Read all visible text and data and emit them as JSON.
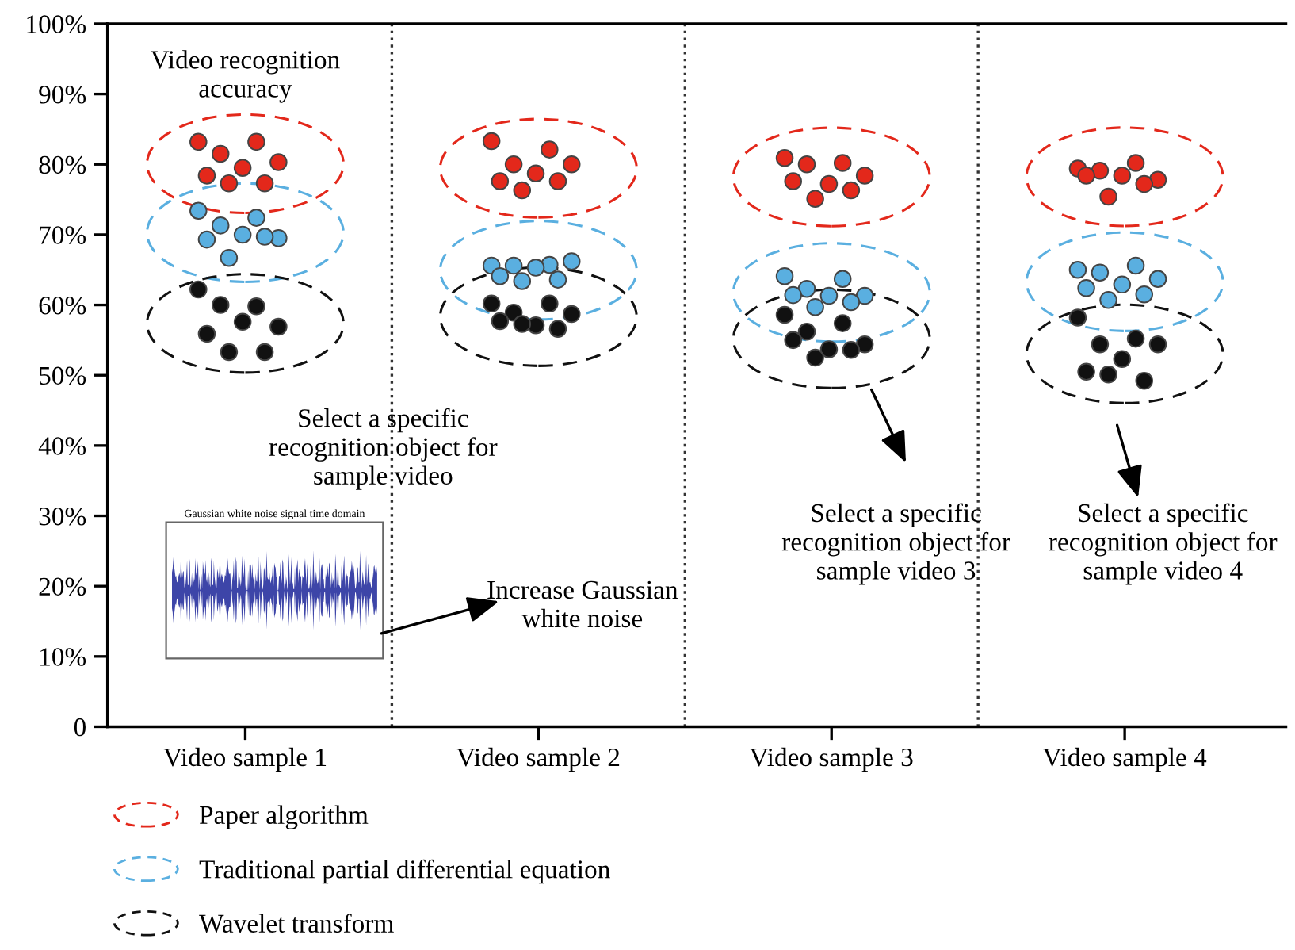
{
  "chart_data": {
    "type": "scatter",
    "categories": [
      "Video sample 1",
      "Video sample 2",
      "Video sample 3",
      "Video sample 4"
    ],
    "ylim": [
      0,
      100
    ],
    "yticks": [
      {
        "value": 0,
        "label": "0"
      },
      {
        "value": 10,
        "label": "10%"
      },
      {
        "value": 20,
        "label": "20%"
      },
      {
        "value": 30,
        "label": "30%"
      },
      {
        "value": 40,
        "label": "40%"
      },
      {
        "value": 50,
        "label": "50%"
      },
      {
        "value": 60,
        "label": "60%"
      },
      {
        "value": 70,
        "label": "70%"
      },
      {
        "value": 80,
        "label": "80%"
      },
      {
        "value": 90,
        "label": "90%"
      },
      {
        "value": 100,
        "label": "100%"
      }
    ],
    "marker": "circle",
    "grid": false,
    "legend": "bottom",
    "series": [
      {
        "name": "Paper algorithm",
        "color": "#e3281b",
        "x": [
          "Video sample 1",
          "Video sample 1",
          "Video sample 1",
          "Video sample 1",
          "Video sample 1",
          "Video sample 1",
          "Video sample 1",
          "Video sample 1",
          "Video sample 2",
          "Video sample 2",
          "Video sample 2",
          "Video sample 2",
          "Video sample 2",
          "Video sample 2",
          "Video sample 2",
          "Video sample 2",
          "Video sample 3",
          "Video sample 3",
          "Video sample 3",
          "Video sample 3",
          "Video sample 3",
          "Video sample 3",
          "Video sample 3",
          "Video sample 3",
          "Video sample 4",
          "Video sample 4",
          "Video sample 4",
          "Video sample 4",
          "Video sample 4",
          "Video sample 4",
          "Video sample 4",
          "Video sample 4"
        ],
        "values": [
          83.2,
          83.2,
          81.5,
          80.3,
          79.5,
          78.4,
          77.3,
          77.3,
          83.3,
          82.1,
          80.0,
          80.0,
          78.7,
          77.6,
          77.6,
          76.3,
          80.9,
          80.2,
          80.0,
          78.4,
          77.2,
          77.6,
          76.3,
          75.1,
          79.4,
          80.2,
          79.1,
          77.8,
          78.4,
          78.4,
          77.2,
          75.4
        ]
      },
      {
        "name": "Traditional partial differential equation",
        "color": "#5aafe0",
        "x": [
          "Video sample 1",
          "Video sample 1",
          "Video sample 1",
          "Video sample 1",
          "Video sample 1",
          "Video sample 1",
          "Video sample 1",
          "Video sample 1",
          "Video sample 2",
          "Video sample 2",
          "Video sample 2",
          "Video sample 2",
          "Video sample 2",
          "Video sample 2",
          "Video sample 2",
          "Video sample 2",
          "Video sample 3",
          "Video sample 3",
          "Video sample 3",
          "Video sample 3",
          "Video sample 3",
          "Video sample 3",
          "Video sample 3",
          "Video sample 3",
          "Video sample 4",
          "Video sample 4",
          "Video sample 4",
          "Video sample 4",
          "Video sample 4",
          "Video sample 4",
          "Video sample 4",
          "Video sample 4"
        ],
        "values": [
          73.4,
          72.4,
          71.3,
          69.5,
          70.0,
          69.3,
          69.7,
          66.7,
          65.6,
          65.7,
          65.6,
          66.2,
          65.3,
          64.1,
          63.6,
          63.4,
          64.1,
          63.7,
          62.3,
          61.3,
          61.3,
          61.4,
          60.4,
          59.7,
          65.0,
          65.6,
          64.6,
          63.7,
          62.9,
          62.4,
          61.5,
          60.7
        ]
      },
      {
        "name": "Wavelet transform",
        "color": "#111111",
        "x": [
          "Video sample 1",
          "Video sample 1",
          "Video sample 1",
          "Video sample 1",
          "Video sample 1",
          "Video sample 1",
          "Video sample 1",
          "Video sample 1",
          "Video sample 2",
          "Video sample 2",
          "Video sample 2",
          "Video sample 2",
          "Video sample 2",
          "Video sample 2",
          "Video sample 2",
          "Video sample 2",
          "Video sample 3",
          "Video sample 3",
          "Video sample 3",
          "Video sample 3",
          "Video sample 3",
          "Video sample 3",
          "Video sample 3",
          "Video sample 3",
          "Video sample 4",
          "Video sample 4",
          "Video sample 4",
          "Video sample 4",
          "Video sample 4",
          "Video sample 4",
          "Video sample 4",
          "Video sample 4"
        ],
        "values": [
          62.2,
          59.8,
          60.0,
          56.9,
          57.6,
          55.9,
          53.3,
          53.3,
          60.2,
          60.2,
          58.9,
          58.7,
          57.1,
          57.7,
          56.6,
          57.3,
          58.6,
          57.4,
          56.2,
          54.4,
          53.7,
          55.0,
          53.6,
          52.5,
          58.2,
          55.2,
          54.4,
          54.4,
          52.3,
          50.5,
          49.2,
          50.1
        ]
      }
    ],
    "annotations": [
      "Video recognition\naccuracy",
      "Select a specific\nrecognition object for\nsample video",
      "Select a specific\nrecognition object for\nsample video 3",
      "Select a specific\nrecognition object for\nsample video 4",
      "Increase Gaussian\nwhite noise",
      "Gaussian white noise signal time domain"
    ]
  }
}
